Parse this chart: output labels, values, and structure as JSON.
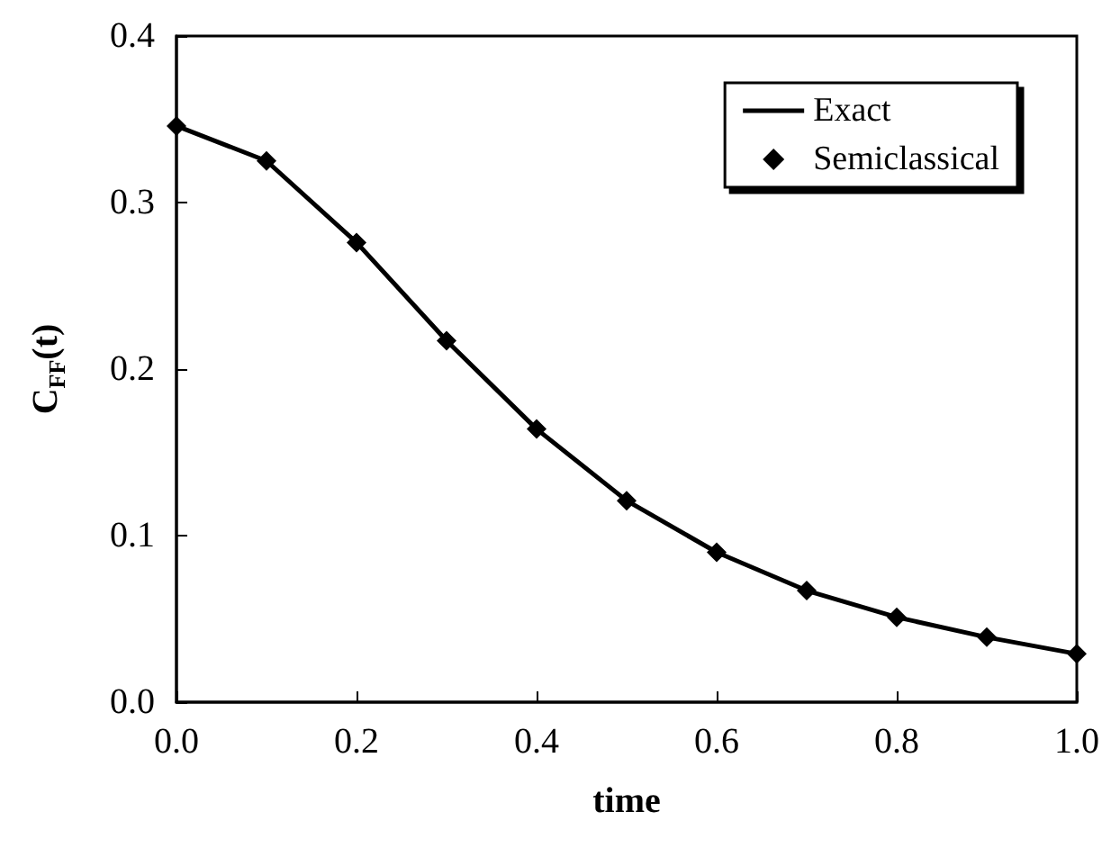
{
  "chart_data": {
    "type": "line",
    "xlabel": "time",
    "ylabel": "C$_{FF}$(t)",
    "x": [
      0,
      0.1,
      0.2,
      0.3,
      0.4,
      0.5,
      0.6,
      0.7,
      0.8,
      0.9,
      1.0
    ],
    "series": [
      {
        "name": "Exact",
        "color": "#000000",
        "marker": "none",
        "line_style": "solid",
        "values": [
          0.346,
          0.325,
          0.276,
          0.217,
          0.164,
          0.121,
          0.09,
          0.067,
          0.051,
          0.039,
          0.029
        ]
      },
      {
        "name": "Semiclassical",
        "type": "scatter",
        "color": "#000000",
        "marker": "diamond",
        "values": [
          0.346,
          0.325,
          0.276,
          0.217,
          0.164,
          0.121,
          0.09,
          0.067,
          0.051,
          0.039,
          0.029
        ]
      }
    ],
    "xlim": [
      0,
      1
    ],
    "xticks": [
      {
        "value": 0,
        "label": "0.0"
      },
      0.2,
      0.4,
      0.6,
      0.8,
      {
        "value": 1,
        "label": "1.0"
      }
    ],
    "ylim": [
      0,
      0.4
    ],
    "yticks": [
      {
        "value": 0,
        "label": "0.0"
      },
      0.1,
      0.2,
      0.3,
      0.4
    ],
    "grid": false,
    "legend": "top right"
  }
}
